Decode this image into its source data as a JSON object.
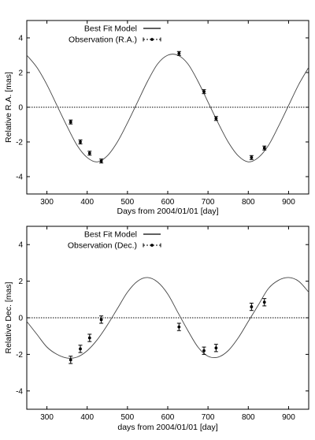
{
  "chart_data": [
    {
      "type": "scatter",
      "xlabel": "Days from 2004/01/01  [day]",
      "ylabel": "Relative R.A.  [mas]",
      "xlim": [
        250,
        950
      ],
      "ylim": [
        -5,
        5
      ],
      "xticks": [
        300,
        400,
        500,
        600,
        700,
        800,
        900
      ],
      "yticks": [
        -4,
        -2,
        0,
        2,
        4
      ],
      "legend": [
        "Best Fit Model",
        "Observation (R.A.)"
      ],
      "legend_position": "top-left",
      "reference_line": 0,
      "model": {
        "name": "Best Fit Model",
        "x": [
          250,
          275,
          300,
          325,
          350,
          375,
          400,
          425,
          450,
          475,
          500,
          525,
          550,
          575,
          600,
          625,
          650,
          675,
          700,
          725,
          750,
          775,
          800,
          825,
          850,
          875,
          900,
          925,
          950
        ],
        "y": [
          3.0,
          2.3,
          1.3,
          0.1,
          -1.1,
          -2.2,
          -2.9,
          -3.15,
          -2.8,
          -2.0,
          -0.9,
          0.3,
          1.5,
          2.5,
          3.0,
          3.0,
          2.5,
          1.5,
          0.3,
          -0.9,
          -2.0,
          -2.8,
          -3.15,
          -2.9,
          -2.2,
          -1.1,
          0.1,
          1.3,
          2.3
        ]
      },
      "series": [
        {
          "name": "Observation (R.A.)",
          "x": [
            359,
            383,
            406,
            435,
            628,
            690,
            720,
            808,
            840
          ],
          "y": [
            -0.85,
            -2.0,
            -2.65,
            -3.1,
            3.1,
            0.9,
            -0.65,
            -2.9,
            -2.35
          ],
          "yerr": [
            0.08,
            0.08,
            0.08,
            0.08,
            0.08,
            0.08,
            0.08,
            0.08,
            0.08
          ]
        }
      ]
    },
    {
      "type": "scatter",
      "xlabel": "days from 2004/01/01  [day]",
      "ylabel": "Relative Dec.  [mas]",
      "xlim": [
        250,
        950
      ],
      "ylim": [
        -5,
        5
      ],
      "xticks": [
        300,
        400,
        500,
        600,
        700,
        800,
        900
      ],
      "yticks": [
        -4,
        -2,
        0,
        2,
        4
      ],
      "legend": [
        "Best Fit Model",
        "Observation (Dec.)"
      ],
      "legend_position": "top-left",
      "reference_line": 0,
      "model": {
        "name": "Best Fit Model",
        "x": [
          250,
          275,
          300,
          325,
          350,
          375,
          400,
          425,
          450,
          475,
          500,
          525,
          550,
          575,
          600,
          625,
          650,
          675,
          700,
          725,
          750,
          775,
          800,
          825,
          850,
          875,
          900,
          925,
          950
        ],
        "y": [
          -0.2,
          -0.9,
          -1.6,
          -2.0,
          -2.2,
          -2.15,
          -1.8,
          -1.2,
          -0.4,
          0.5,
          1.4,
          2.0,
          2.2,
          1.95,
          1.3,
          0.3,
          -0.7,
          -1.6,
          -2.1,
          -2.15,
          -1.8,
          -1.1,
          -0.2,
          0.7,
          1.6,
          2.05,
          2.2,
          2.0,
          1.4
        ]
      },
      "series": [
        {
          "name": "Observation (Dec.)",
          "x": [
            359,
            383,
            406,
            435,
            628,
            690,
            720,
            808,
            840
          ],
          "y": [
            -2.3,
            -1.7,
            -1.1,
            -0.1,
            -0.5,
            -1.8,
            -1.65,
            0.6,
            0.85
          ],
          "yerr": [
            0.2,
            0.2,
            0.2,
            0.2,
            0.2,
            0.2,
            0.2,
            0.2,
            0.2
          ]
        }
      ]
    }
  ]
}
